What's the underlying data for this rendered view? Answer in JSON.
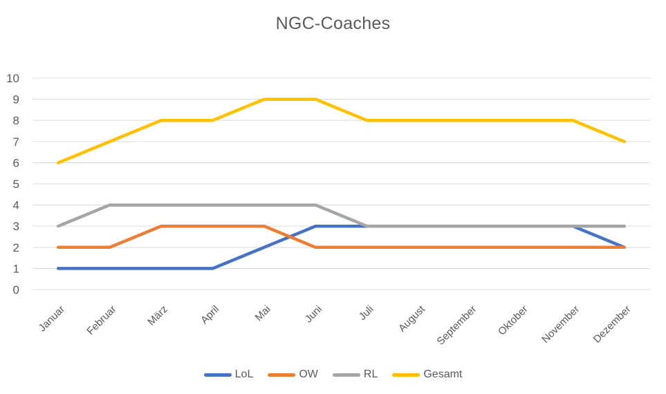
{
  "chart_data": {
    "type": "line",
    "title": "NGC-Coaches",
    "categories": [
      "Januar",
      "Februar",
      "März",
      "April",
      "Mai",
      "Juni",
      "Juli",
      "August",
      "September",
      "Oktober",
      "November",
      "Dezember"
    ],
    "series": [
      {
        "name": "LoL",
        "color": "#4472C4",
        "values": [
          1,
          1,
          1,
          1,
          2,
          3,
          3,
          3,
          3,
          3,
          3,
          2
        ]
      },
      {
        "name": "OW",
        "color": "#ED7D31",
        "values": [
          2,
          2,
          3,
          3,
          3,
          2,
          2,
          2,
          2,
          2,
          2,
          2
        ]
      },
      {
        "name": "RL",
        "color": "#A5A5A5",
        "values": [
          3,
          4,
          4,
          4,
          4,
          4,
          3,
          3,
          3,
          3,
          3,
          3
        ]
      },
      {
        "name": "Gesamt",
        "color": "#FFC000",
        "values": [
          6,
          7,
          8,
          8,
          9,
          9,
          8,
          8,
          8,
          8,
          8,
          7
        ]
      }
    ],
    "xlabel": "",
    "ylabel": "",
    "ylim": [
      0,
      10
    ],
    "y_ticks": [
      0,
      1,
      2,
      3,
      4,
      5,
      6,
      7,
      8,
      9,
      10
    ],
    "grid": true,
    "legend_position": "bottom",
    "text_color": "#595959",
    "gridline_color": "#D9D9D9",
    "background_color": "#FFFFFF"
  }
}
